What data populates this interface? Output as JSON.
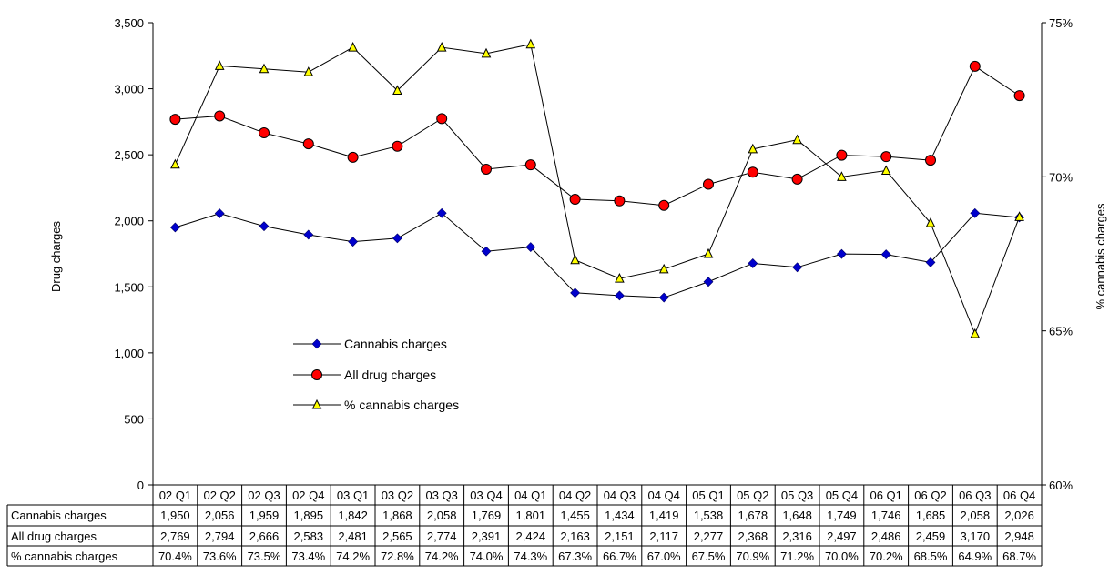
{
  "chart_data": {
    "type": "line",
    "categories": [
      "02 Q1",
      "02 Q2",
      "02 Q3",
      "02 Q4",
      "03 Q1",
      "03 Q2",
      "03 Q3",
      "03 Q4",
      "04 Q1",
      "04 Q2",
      "04 Q3",
      "04 Q4",
      "05 Q1",
      "05 Q2",
      "05 Q3",
      "05 Q4",
      "06 Q1",
      "06 Q2",
      "06 Q3",
      "06 Q4"
    ],
    "ylabel": "Drug charges",
    "y2label": "% cannabis charges",
    "ylim": [
      0,
      3500
    ],
    "y2lim": [
      60,
      75
    ],
    "y_ticks": [
      "0",
      "500",
      "1,000",
      "1,500",
      "2,000",
      "2,500",
      "3,000",
      "3,500"
    ],
    "y2_ticks": [
      "60%",
      "65%",
      "70%",
      "75%"
    ],
    "grid": false,
    "legend_position": "center-left",
    "series": [
      {
        "name": "Cannabis charges",
        "axis": "left",
        "marker": "diamond",
        "color": "#0000CC",
        "values": [
          1950,
          2056,
          1959,
          1895,
          1842,
          1868,
          2058,
          1769,
          1801,
          1455,
          1434,
          1419,
          1538,
          1678,
          1648,
          1749,
          1746,
          1685,
          2058,
          2026
        ],
        "labels": [
          "1,950",
          "2,056",
          "1,959",
          "1,895",
          "1,842",
          "1,868",
          "2,058",
          "1,769",
          "1,801",
          "1,455",
          "1,434",
          "1,419",
          "1,538",
          "1,678",
          "1,648",
          "1,749",
          "1,746",
          "1,685",
          "2,058",
          "2,026"
        ]
      },
      {
        "name": "All drug charges",
        "axis": "left",
        "marker": "circle",
        "color": "#FF0000",
        "values": [
          2769,
          2794,
          2666,
          2583,
          2481,
          2565,
          2774,
          2391,
          2424,
          2163,
          2151,
          2117,
          2277,
          2368,
          2316,
          2497,
          2486,
          2459,
          3170,
          2948
        ],
        "labels": [
          "2,769",
          "2,794",
          "2,666",
          "2,583",
          "2,481",
          "2,565",
          "2,774",
          "2,391",
          "2,424",
          "2,163",
          "2,151",
          "2,117",
          "2,277",
          "2,368",
          "2,316",
          "2,497",
          "2,486",
          "2,459",
          "3,170",
          "2,948"
        ]
      },
      {
        "name": "% cannabis charges",
        "axis": "right",
        "marker": "triangle",
        "color": "#FFFF00",
        "values": [
          70.4,
          73.6,
          73.5,
          73.4,
          74.2,
          72.8,
          74.2,
          74.0,
          74.3,
          67.3,
          66.7,
          67.0,
          67.5,
          70.9,
          71.2,
          70.0,
          70.2,
          68.5,
          64.9,
          68.7
        ],
        "labels": [
          "70.4%",
          "73.6%",
          "73.5%",
          "73.4%",
          "74.2%",
          "72.8%",
          "74.2%",
          "74.0%",
          "74.3%",
          "67.3%",
          "66.7%",
          "67.0%",
          "67.5%",
          "70.9%",
          "71.2%",
          "70.0%",
          "70.2%",
          "68.5%",
          "64.9%",
          "68.7%"
        ]
      }
    ]
  }
}
